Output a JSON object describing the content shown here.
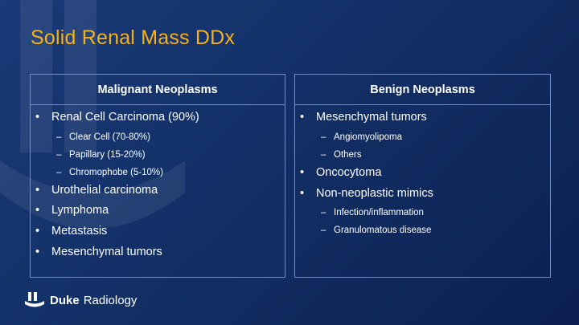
{
  "slide": {
    "title": "Solid Renal Mass DDx"
  },
  "left_panel": {
    "header": "Malignant Neoplasms",
    "items": [
      {
        "level": 1,
        "text": "Renal Cell Carcinoma (90%)"
      },
      {
        "level": 2,
        "text": "Clear Cell (70-80%)"
      },
      {
        "level": 2,
        "text": "Papillary (15-20%)"
      },
      {
        "level": 2,
        "text": "Chromophobe (5-10%)"
      },
      {
        "level": 1,
        "text": "Urothelial carcinoma"
      },
      {
        "level": 1,
        "text": "Lymphoma"
      },
      {
        "level": 1,
        "text": "Metastasis"
      },
      {
        "level": 1,
        "text": "Mesenchymal tumors"
      }
    ]
  },
  "right_panel": {
    "header": "Benign Neoplasms",
    "items": [
      {
        "level": 1,
        "text": "Mesenchymal tumors"
      },
      {
        "level": 2,
        "text": "Angiomyolipoma"
      },
      {
        "level": 2,
        "text": "Others"
      },
      {
        "level": 1,
        "text": "Oncocytoma"
      },
      {
        "level": 1,
        "text": "Non-neoplastic mimics"
      },
      {
        "level": 2,
        "text": "Infection/inflammation"
      },
      {
        "level": 2,
        "text": "Granulomatous disease"
      }
    ]
  },
  "footer": {
    "brand": "Duke",
    "department": "Radiology",
    "logo_icon": "duke-shield-icon"
  },
  "colors": {
    "background": "#123066",
    "title": "#f6b21b",
    "border": "#6f8fc6",
    "text": "#ffffff"
  }
}
